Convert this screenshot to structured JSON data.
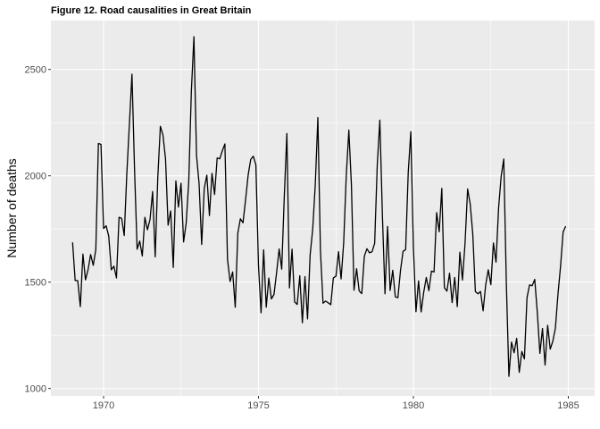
{
  "chart_data": {
    "type": "line",
    "title": "Figure 12. Road causalities in Great Britain",
    "xlabel": "",
    "ylabel": "Number of deaths",
    "xlim": [
      1968.3,
      1985.85
    ],
    "ylim": [
      965,
      2730
    ],
    "x_ticks": [
      1970,
      1975,
      1980,
      1985
    ],
    "y_ticks": [
      1000,
      1500,
      2000,
      2500
    ],
    "grid": true,
    "legend": "none",
    "x_start": 1969,
    "x_step": 0.0833333,
    "series": [
      {
        "name": "",
        "color": "#000000",
        "values": [
          1687,
          1508,
          1507,
          1385,
          1632,
          1511,
          1559,
          1630,
          1579,
          1653,
          2152,
          2148,
          1752,
          1765,
          1717,
          1558,
          1575,
          1520,
          1805,
          1800,
          1719,
          2008,
          2242,
          2478,
          2030,
          1655,
          1693,
          1623,
          1805,
          1746,
          1795,
          1926,
          1619,
          1992,
          2233,
          2192,
          2080,
          1768,
          1835,
          1569,
          1976,
          1853,
          1965,
          1689,
          1778,
          1976,
          2397,
          2654,
          2097,
          1963,
          1677,
          1941,
          2003,
          1813,
          2012,
          1912,
          2084,
          2080,
          2118,
          2150,
          1608,
          1503,
          1548,
          1382,
          1731,
          1798,
          1779,
          1887,
          2004,
          2077,
          2092,
          2051,
          1577,
          1356,
          1652,
          1382,
          1519,
          1421,
          1442,
          1543,
          1656,
          1561,
          1905,
          2199,
          1473,
          1655,
          1407,
          1395,
          1530,
          1309,
          1526,
          1327,
          1627,
          1748,
          1958,
          2274,
          1648,
          1401,
          1411,
          1403,
          1394,
          1520,
          1528,
          1643,
          1515,
          1685,
          2000,
          2215,
          1956,
          1462,
          1563,
          1459,
          1446,
          1622,
          1657,
          1638,
          1643,
          1683,
          2050,
          2262,
          1813,
          1445,
          1762,
          1461,
          1556,
          1431,
          1427,
          1554,
          1645,
          1653,
          2016,
          2207,
          1665,
          1361,
          1506,
          1360,
          1453,
          1522,
          1460,
          1552,
          1548,
          1827,
          1737,
          1941,
          1474,
          1458,
          1542,
          1404,
          1522,
          1385,
          1641,
          1510,
          1681,
          1938,
          1868,
          1726,
          1456,
          1445,
          1456,
          1365,
          1487,
          1558,
          1488,
          1684,
          1594,
          1850,
          1998,
          2079,
          1494,
          1057,
          1218,
          1168,
          1236,
          1076,
          1174,
          1139,
          1427,
          1487,
          1483,
          1513,
          1357,
          1165,
          1282,
          1110,
          1297,
          1185,
          1222,
          1284,
          1444,
          1575,
          1737,
          1763
        ]
      }
    ]
  }
}
